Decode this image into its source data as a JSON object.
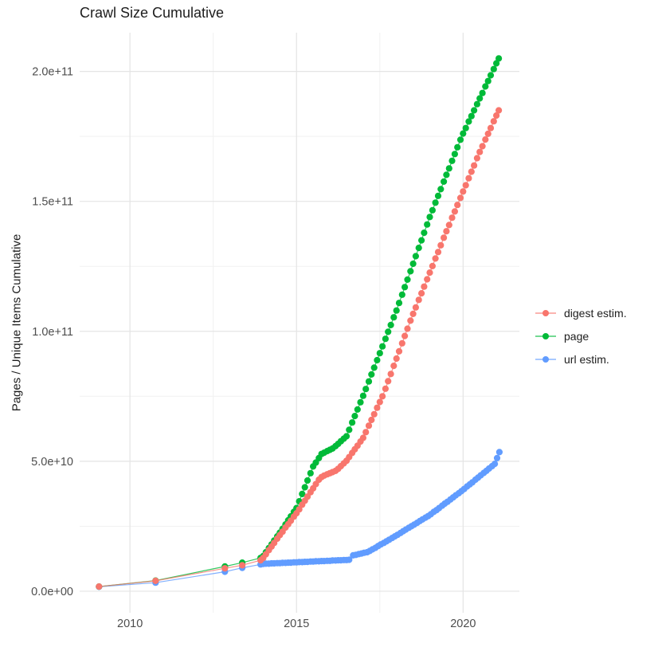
{
  "chart_data": {
    "type": "scatter",
    "title": "Crawl Size Cumulative",
    "xlabel": "",
    "ylabel": "Pages / Unique Items Cumulative",
    "value_unit": "value_e10 means multiples of 1e10 pages/items",
    "xlim": [
      2008.49,
      2021.69
    ],
    "ylim_e10": [
      -0.83,
      21.49
    ],
    "grid": "on",
    "grid_major_color": "#e4e4e4",
    "grid_minor_color": "#f1f1f1",
    "axis_text_color": "#4d4d4d",
    "legend_position": "right",
    "x_ticks": [
      {
        "label": "2010",
        "value": 2010
      },
      {
        "label": "2015",
        "value": 2015
      },
      {
        "label": "2020",
        "value": 2020
      }
    ],
    "x_minor": [
      2012.5,
      2017.5
    ],
    "y_ticks": [
      {
        "label": "0.0e+00",
        "value_e10": 0
      },
      {
        "label": "5.0e+10",
        "value_e10": 5
      },
      {
        "label": "1.0e+11",
        "value_e10": 10
      },
      {
        "label": "1.5e+11",
        "value_e10": 15
      },
      {
        "label": "2.0e+11",
        "value_e10": 20
      }
    ],
    "y_minor_e10": [
      2.5,
      7.5,
      12.5,
      17.5
    ],
    "series": [
      {
        "name": "digest estim.",
        "color": "#F8766D",
        "points": [
          [
            2009.07,
            0.18
          ],
          [
            2010.77,
            0.4
          ],
          [
            2012.85,
            0.88
          ],
          [
            2013.37,
            1.0
          ],
          [
            2013.92,
            1.19
          ],
          [
            2014.0,
            1.28
          ],
          [
            2014.08,
            1.42
          ],
          [
            2014.17,
            1.58
          ],
          [
            2014.25,
            1.72
          ],
          [
            2014.33,
            1.86
          ],
          [
            2014.42,
            2.02
          ],
          [
            2014.5,
            2.16
          ],
          [
            2014.58,
            2.29
          ],
          [
            2014.67,
            2.45
          ],
          [
            2014.75,
            2.58
          ],
          [
            2014.83,
            2.71
          ],
          [
            2014.92,
            2.87
          ],
          [
            2015.0,
            3.0
          ],
          [
            2015.08,
            3.15
          ],
          [
            2015.17,
            3.33
          ],
          [
            2015.25,
            3.48
          ],
          [
            2015.33,
            3.64
          ],
          [
            2015.42,
            3.81
          ],
          [
            2015.5,
            3.96
          ],
          [
            2015.58,
            4.12
          ],
          [
            2015.67,
            4.29
          ],
          [
            2015.75,
            4.39
          ],
          [
            2015.83,
            4.45
          ],
          [
            2015.92,
            4.5
          ],
          [
            2016.0,
            4.54
          ],
          [
            2016.08,
            4.58
          ],
          [
            2016.17,
            4.63
          ],
          [
            2016.25,
            4.71
          ],
          [
            2016.33,
            4.81
          ],
          [
            2016.42,
            4.92
          ],
          [
            2016.5,
            5.02
          ],
          [
            2016.58,
            5.16
          ],
          [
            2016.67,
            5.32
          ],
          [
            2016.75,
            5.46
          ],
          [
            2016.83,
            5.6
          ],
          [
            2016.92,
            5.76
          ],
          [
            2017.0,
            5.9
          ],
          [
            2017.08,
            6.12
          ],
          [
            2017.17,
            6.37
          ],
          [
            2017.25,
            6.59
          ],
          [
            2017.33,
            6.81
          ],
          [
            2017.42,
            7.06
          ],
          [
            2017.5,
            7.28
          ],
          [
            2017.58,
            7.5
          ],
          [
            2017.67,
            7.79
          ],
          [
            2017.75,
            8.08
          ],
          [
            2017.83,
            8.36
          ],
          [
            2017.92,
            8.67
          ],
          [
            2018.0,
            8.95
          ],
          [
            2018.08,
            9.23
          ],
          [
            2018.17,
            9.54
          ],
          [
            2018.25,
            9.82
          ],
          [
            2018.33,
            10.1
          ],
          [
            2018.42,
            10.41
          ],
          [
            2018.5,
            10.67
          ],
          [
            2018.58,
            10.92
          ],
          [
            2018.67,
            11.21
          ],
          [
            2018.75,
            11.46
          ],
          [
            2018.83,
            11.72
          ],
          [
            2018.92,
            12.0
          ],
          [
            2019.0,
            12.26
          ],
          [
            2019.08,
            12.51
          ],
          [
            2019.17,
            12.8
          ],
          [
            2019.25,
            13.05
          ],
          [
            2019.33,
            13.31
          ],
          [
            2019.42,
            13.6
          ],
          [
            2019.5,
            13.85
          ],
          [
            2019.58,
            14.09
          ],
          [
            2019.67,
            14.37
          ],
          [
            2019.75,
            14.61
          ],
          [
            2019.83,
            14.86
          ],
          [
            2019.92,
            15.13
          ],
          [
            2020.0,
            15.38
          ],
          [
            2020.08,
            15.62
          ],
          [
            2020.17,
            15.89
          ],
          [
            2020.25,
            16.14
          ],
          [
            2020.33,
            16.38
          ],
          [
            2020.42,
            16.66
          ],
          [
            2020.5,
            16.9
          ],
          [
            2020.58,
            17.12
          ],
          [
            2020.67,
            17.38
          ],
          [
            2020.75,
            17.6
          ],
          [
            2020.83,
            17.82
          ],
          [
            2020.92,
            18.08
          ],
          [
            2021.0,
            18.3
          ],
          [
            2021.07,
            18.5
          ]
        ]
      },
      {
        "name": "page",
        "color": "#00BA38",
        "points": [
          [
            2009.07,
            0.18
          ],
          [
            2010.77,
            0.41
          ],
          [
            2012.85,
            0.95
          ],
          [
            2013.37,
            1.1
          ],
          [
            2013.92,
            1.28
          ],
          [
            2014.0,
            1.35
          ],
          [
            2014.08,
            1.5
          ],
          [
            2014.17,
            1.66
          ],
          [
            2014.25,
            1.8
          ],
          [
            2014.33,
            1.95
          ],
          [
            2014.42,
            2.11
          ],
          [
            2014.5,
            2.25
          ],
          [
            2014.58,
            2.4
          ],
          [
            2014.67,
            2.57
          ],
          [
            2014.75,
            2.73
          ],
          [
            2014.83,
            2.88
          ],
          [
            2014.92,
            3.05
          ],
          [
            2015.0,
            3.2
          ],
          [
            2015.08,
            3.46
          ],
          [
            2015.17,
            3.74
          ],
          [
            2015.25,
            4.0
          ],
          [
            2015.33,
            4.26
          ],
          [
            2015.42,
            4.54
          ],
          [
            2015.5,
            4.8
          ],
          [
            2015.58,
            4.95
          ],
          [
            2015.67,
            5.12
          ],
          [
            2015.75,
            5.28
          ],
          [
            2015.83,
            5.33
          ],
          [
            2015.92,
            5.39
          ],
          [
            2016.0,
            5.44
          ],
          [
            2016.08,
            5.49
          ],
          [
            2016.17,
            5.58
          ],
          [
            2016.25,
            5.67
          ],
          [
            2016.33,
            5.77
          ],
          [
            2016.42,
            5.87
          ],
          [
            2016.5,
            5.96
          ],
          [
            2016.58,
            6.21
          ],
          [
            2016.67,
            6.49
          ],
          [
            2016.75,
            6.74
          ],
          [
            2016.83,
            6.99
          ],
          [
            2016.92,
            7.27
          ],
          [
            2017.0,
            7.52
          ],
          [
            2017.08,
            7.78
          ],
          [
            2017.17,
            8.07
          ],
          [
            2017.25,
            8.34
          ],
          [
            2017.33,
            8.6
          ],
          [
            2017.42,
            8.89
          ],
          [
            2017.5,
            9.16
          ],
          [
            2017.58,
            9.42
          ],
          [
            2017.67,
            9.71
          ],
          [
            2017.75,
            9.98
          ],
          [
            2017.83,
            10.24
          ],
          [
            2017.92,
            10.54
          ],
          [
            2018.0,
            10.8
          ],
          [
            2018.08,
            11.09
          ],
          [
            2018.17,
            11.41
          ],
          [
            2018.25,
            11.7
          ],
          [
            2018.33,
            11.99
          ],
          [
            2018.42,
            12.31
          ],
          [
            2018.5,
            12.6
          ],
          [
            2018.58,
            12.89
          ],
          [
            2018.67,
            13.21
          ],
          [
            2018.75,
            13.5
          ],
          [
            2018.83,
            13.79
          ],
          [
            2018.92,
            14.11
          ],
          [
            2019.0,
            14.4
          ],
          [
            2019.08,
            14.66
          ],
          [
            2019.17,
            14.95
          ],
          [
            2019.25,
            15.21
          ],
          [
            2019.33,
            15.47
          ],
          [
            2019.42,
            15.76
          ],
          [
            2019.5,
            16.02
          ],
          [
            2019.58,
            16.27
          ],
          [
            2019.67,
            16.56
          ],
          [
            2019.75,
            16.82
          ],
          [
            2019.83,
            17.08
          ],
          [
            2019.92,
            17.37
          ],
          [
            2020.0,
            17.61
          ],
          [
            2020.08,
            17.82
          ],
          [
            2020.17,
            18.07
          ],
          [
            2020.25,
            18.28
          ],
          [
            2020.33,
            18.5
          ],
          [
            2020.42,
            18.74
          ],
          [
            2020.5,
            18.96
          ],
          [
            2020.58,
            19.17
          ],
          [
            2020.67,
            19.42
          ],
          [
            2020.75,
            19.63
          ],
          [
            2020.83,
            19.85
          ],
          [
            2020.92,
            20.09
          ],
          [
            2021.0,
            20.31
          ],
          [
            2021.07,
            20.5
          ]
        ]
      },
      {
        "name": "url estim.",
        "color": "#619CFF",
        "points": [
          [
            2009.07,
            0.17
          ],
          [
            2010.77,
            0.33
          ],
          [
            2012.85,
            0.75
          ],
          [
            2013.37,
            0.9
          ],
          [
            2013.92,
            1.03
          ],
          [
            2014.0,
            1.05
          ],
          [
            2014.08,
            1.06
          ],
          [
            2014.17,
            1.06
          ],
          [
            2014.25,
            1.07
          ],
          [
            2014.33,
            1.07
          ],
          [
            2014.42,
            1.08
          ],
          [
            2014.5,
            1.08
          ],
          [
            2014.58,
            1.09
          ],
          [
            2014.67,
            1.09
          ],
          [
            2014.75,
            1.1
          ],
          [
            2014.83,
            1.1
          ],
          [
            2014.92,
            1.11
          ],
          [
            2015.0,
            1.11
          ],
          [
            2015.08,
            1.12
          ],
          [
            2015.17,
            1.12
          ],
          [
            2015.25,
            1.13
          ],
          [
            2015.33,
            1.13
          ],
          [
            2015.42,
            1.14
          ],
          [
            2015.5,
            1.14
          ],
          [
            2015.58,
            1.15
          ],
          [
            2015.67,
            1.15
          ],
          [
            2015.75,
            1.16
          ],
          [
            2015.83,
            1.16
          ],
          [
            2015.92,
            1.17
          ],
          [
            2016.0,
            1.17
          ],
          [
            2016.08,
            1.18
          ],
          [
            2016.17,
            1.18
          ],
          [
            2016.25,
            1.19
          ],
          [
            2016.33,
            1.19
          ],
          [
            2016.42,
            1.2
          ],
          [
            2016.5,
            1.2
          ],
          [
            2016.58,
            1.21
          ],
          [
            2016.7,
            1.38
          ],
          [
            2016.78,
            1.4
          ],
          [
            2016.87,
            1.43
          ],
          [
            2016.95,
            1.45
          ],
          [
            2017.03,
            1.48
          ],
          [
            2017.12,
            1.5
          ],
          [
            2017.2,
            1.55
          ],
          [
            2017.28,
            1.61
          ],
          [
            2017.37,
            1.67
          ],
          [
            2017.45,
            1.74
          ],
          [
            2017.53,
            1.8
          ],
          [
            2017.62,
            1.86
          ],
          [
            2017.7,
            1.92
          ],
          [
            2017.78,
            1.98
          ],
          [
            2017.87,
            2.05
          ],
          [
            2017.95,
            2.11
          ],
          [
            2018.03,
            2.17
          ],
          [
            2018.12,
            2.24
          ],
          [
            2018.2,
            2.31
          ],
          [
            2018.28,
            2.37
          ],
          [
            2018.37,
            2.44
          ],
          [
            2018.45,
            2.5
          ],
          [
            2018.53,
            2.56
          ],
          [
            2018.62,
            2.63
          ],
          [
            2018.7,
            2.7
          ],
          [
            2018.78,
            2.76
          ],
          [
            2018.87,
            2.83
          ],
          [
            2018.95,
            2.89
          ],
          [
            2019.03,
            2.96
          ],
          [
            2019.12,
            3.05
          ],
          [
            2019.2,
            3.12
          ],
          [
            2019.28,
            3.2
          ],
          [
            2019.37,
            3.29
          ],
          [
            2019.45,
            3.37
          ],
          [
            2019.53,
            3.44
          ],
          [
            2019.62,
            3.53
          ],
          [
            2019.7,
            3.61
          ],
          [
            2019.78,
            3.69
          ],
          [
            2019.87,
            3.77
          ],
          [
            2019.95,
            3.85
          ],
          [
            2020.03,
            3.93
          ],
          [
            2020.12,
            4.03
          ],
          [
            2020.2,
            4.11
          ],
          [
            2020.28,
            4.19
          ],
          [
            2020.37,
            4.29
          ],
          [
            2020.45,
            4.37
          ],
          [
            2020.53,
            4.46
          ],
          [
            2020.62,
            4.55
          ],
          [
            2020.7,
            4.63
          ],
          [
            2020.78,
            4.72
          ],
          [
            2020.87,
            4.81
          ],
          [
            2020.95,
            4.9
          ],
          [
            2021.02,
            5.12
          ],
          [
            2021.09,
            5.35
          ]
        ]
      }
    ]
  }
}
